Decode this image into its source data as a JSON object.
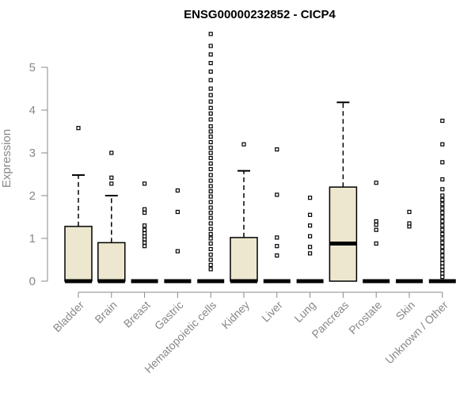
{
  "chart_data": {
    "type": "box",
    "title": "ENSG00000232852 - CICP4",
    "ylabel": "Expression",
    "xlabel": "",
    "ylim": [
      0,
      5.8
    ],
    "yticks": [
      0,
      1,
      2,
      3,
      4,
      5
    ],
    "grid": false,
    "colors": {
      "box_fill": "#EDE7CF",
      "stroke": "#000000",
      "axis": "#888888"
    },
    "categories": [
      "Bladder",
      "Brain",
      "Breast",
      "Gastric",
      "Hematopoietic cells",
      "Kidney",
      "Liver",
      "Lung",
      "Pancreas",
      "Prostate",
      "Skin",
      "Unknown / Other"
    ],
    "boxes": [
      {
        "q1": 0,
        "median": 0,
        "q3": 1.28,
        "whisker_low": 0,
        "whisker_high": 2.48,
        "outliers": [
          3.58
        ]
      },
      {
        "q1": 0,
        "median": 0,
        "q3": 0.9,
        "whisker_low": 0,
        "whisker_high": 2.0,
        "outliers": [
          2.28,
          2.42,
          3.0
        ]
      },
      {
        "q1": 0,
        "median": 0,
        "q3": 0,
        "whisker_low": 0,
        "whisker_high": 0,
        "outliers": [
          0.82,
          0.9,
          0.98,
          1.05,
          1.12,
          1.2,
          1.3,
          1.6,
          1.68,
          2.28
        ]
      },
      {
        "q1": 0,
        "median": 0,
        "q3": 0,
        "whisker_low": 0,
        "whisker_high": 0,
        "outliers": [
          0.7,
          1.62,
          2.12
        ]
      },
      {
        "q1": 0,
        "median": 0,
        "q3": 0,
        "whisker_low": 0,
        "whisker_high": 0,
        "outliers": [
          0.28,
          0.38,
          0.5,
          0.62,
          0.75,
          0.88,
          1.0,
          1.1,
          1.22,
          1.35,
          1.48,
          1.6,
          1.72,
          1.85,
          1.98,
          2.1,
          2.22,
          2.35,
          2.48,
          2.62,
          2.75,
          2.88,
          3.0,
          3.12,
          3.25,
          3.38,
          3.5,
          3.62,
          3.78,
          3.92,
          4.05,
          4.2,
          4.35,
          4.5,
          4.7,
          4.9,
          5.1,
          5.3,
          5.5,
          5.78
        ]
      },
      {
        "q1": 0,
        "median": 0,
        "q3": 1.02,
        "whisker_low": 0,
        "whisker_high": 2.58,
        "outliers": [
          3.2
        ]
      },
      {
        "q1": 0,
        "median": 0,
        "q3": 0,
        "whisker_low": 0,
        "whisker_high": 0,
        "outliers": [
          0.6,
          0.82,
          1.02,
          2.02,
          3.08
        ]
      },
      {
        "q1": 0,
        "median": 0,
        "q3": 0,
        "whisker_low": 0,
        "whisker_high": 0,
        "outliers": [
          0.65,
          0.8,
          1.05,
          1.3,
          1.55,
          1.95
        ]
      },
      {
        "q1": 0,
        "median": 0.88,
        "q3": 2.2,
        "whisker_low": 0,
        "whisker_high": 4.18,
        "outliers": []
      },
      {
        "q1": 0,
        "median": 0,
        "q3": 0,
        "whisker_low": 0,
        "whisker_high": 0,
        "outliers": [
          0.88,
          1.2,
          1.32,
          1.4,
          2.3
        ]
      },
      {
        "q1": 0,
        "median": 0,
        "q3": 0,
        "whisker_low": 0,
        "whisker_high": 0,
        "outliers": [
          1.28,
          1.35,
          1.62
        ]
      },
      {
        "q1": 0,
        "median": 0,
        "q3": 0,
        "whisker_low": 0,
        "whisker_high": 0,
        "outliers": [
          0.1,
          0.18,
          0.26,
          0.34,
          0.42,
          0.5,
          0.6,
          0.7,
          0.8,
          0.9,
          1.0,
          1.1,
          1.2,
          1.3,
          1.4,
          1.5,
          1.6,
          1.7,
          1.8,
          1.9,
          2.0,
          2.15,
          2.38,
          2.78,
          3.2,
          3.75
        ]
      }
    ]
  }
}
